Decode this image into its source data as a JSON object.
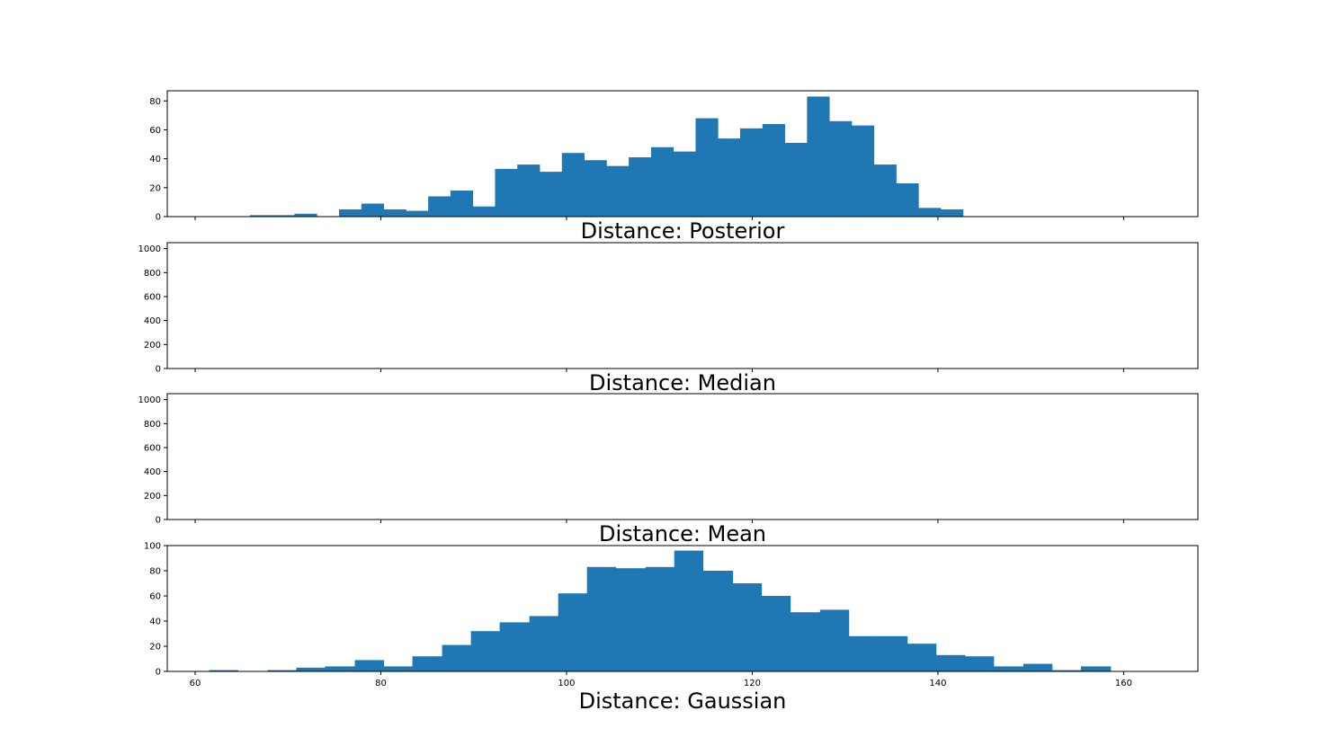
{
  "figure": {
    "background": "#ffffff",
    "bar_color": "#1f77b4"
  },
  "chart_data": [
    {
      "type": "bar",
      "title": "Distance: Posterior",
      "xlim": [
        57,
        168
      ],
      "ylim": [
        0,
        87
      ],
      "yticks": [
        0,
        20,
        40,
        60,
        80
      ],
      "xticks": [
        60,
        80,
        100,
        120,
        140,
        160
      ],
      "show_xtick_labels": false,
      "bins": {
        "edges": [
          63.5,
          65.9,
          68.3,
          70.7,
          73.1,
          75.5,
          77.9,
          80.3,
          82.7,
          85.1,
          87.5,
          89.9,
          92.3,
          94.7,
          97.1,
          99.5,
          101.9,
          104.3,
          106.7,
          109.1,
          111.5,
          113.9,
          116.3,
          118.7,
          121.1,
          123.5,
          125.9,
          128.3,
          130.7,
          133.1,
          135.5,
          137.9,
          140.3,
          142.7
        ],
        "counts": [
          0,
          1,
          1,
          2,
          0,
          5,
          9,
          5,
          4,
          14,
          18,
          7,
          33,
          36,
          31,
          44,
          39,
          35,
          41,
          48,
          45,
          68,
          54,
          61,
          64,
          51,
          83,
          66,
          63,
          36,
          23,
          6,
          5
        ]
      }
    },
    {
      "type": "bar",
      "title": "Distance: Median",
      "xlim": [
        57,
        168
      ],
      "ylim": [
        0,
        1050
      ],
      "yticks": [
        0,
        200,
        400,
        600,
        800,
        1000
      ],
      "xticks": [
        60,
        80,
        100,
        120,
        140,
        160
      ],
      "show_xtick_labels": false,
      "bins": {
        "edges": [],
        "counts": []
      }
    },
    {
      "type": "bar",
      "title": "Distance: Mean",
      "xlim": [
        57,
        168
      ],
      "ylim": [
        0,
        1050
      ],
      "yticks": [
        0,
        200,
        400,
        600,
        800,
        1000
      ],
      "xticks": [
        60,
        80,
        100,
        120,
        140,
        160
      ],
      "show_xtick_labels": false,
      "bins": {
        "edges": [],
        "counts": []
      }
    },
    {
      "type": "bar",
      "title": "Distance: Gaussian",
      "xlim": [
        57,
        168
      ],
      "ylim": [
        0,
        100
      ],
      "yticks": [
        0,
        20,
        40,
        60,
        80,
        100
      ],
      "xticks": [
        60,
        80,
        100,
        120,
        140,
        160
      ],
      "show_xtick_labels": true,
      "bins": {
        "edges": [
          61.5,
          64.6,
          67.8,
          70.9,
          74.0,
          77.2,
          80.3,
          83.4,
          86.6,
          89.7,
          92.8,
          96.0,
          99.1,
          102.2,
          105.3,
          108.5,
          111.6,
          114.7,
          117.9,
          121.0,
          124.1,
          127.3,
          130.4,
          133.5,
          136.7,
          139.8,
          142.9,
          146.0,
          149.2,
          152.3,
          155.4,
          158.6,
          161.7
        ],
        "counts": [
          1,
          0,
          1,
          3,
          4,
          9,
          4,
          12,
          21,
          32,
          39,
          44,
          62,
          83,
          82,
          83,
          96,
          80,
          70,
          60,
          47,
          49,
          28,
          28,
          22,
          13,
          12,
          4,
          6,
          1,
          4,
          0
        ]
      }
    }
  ]
}
